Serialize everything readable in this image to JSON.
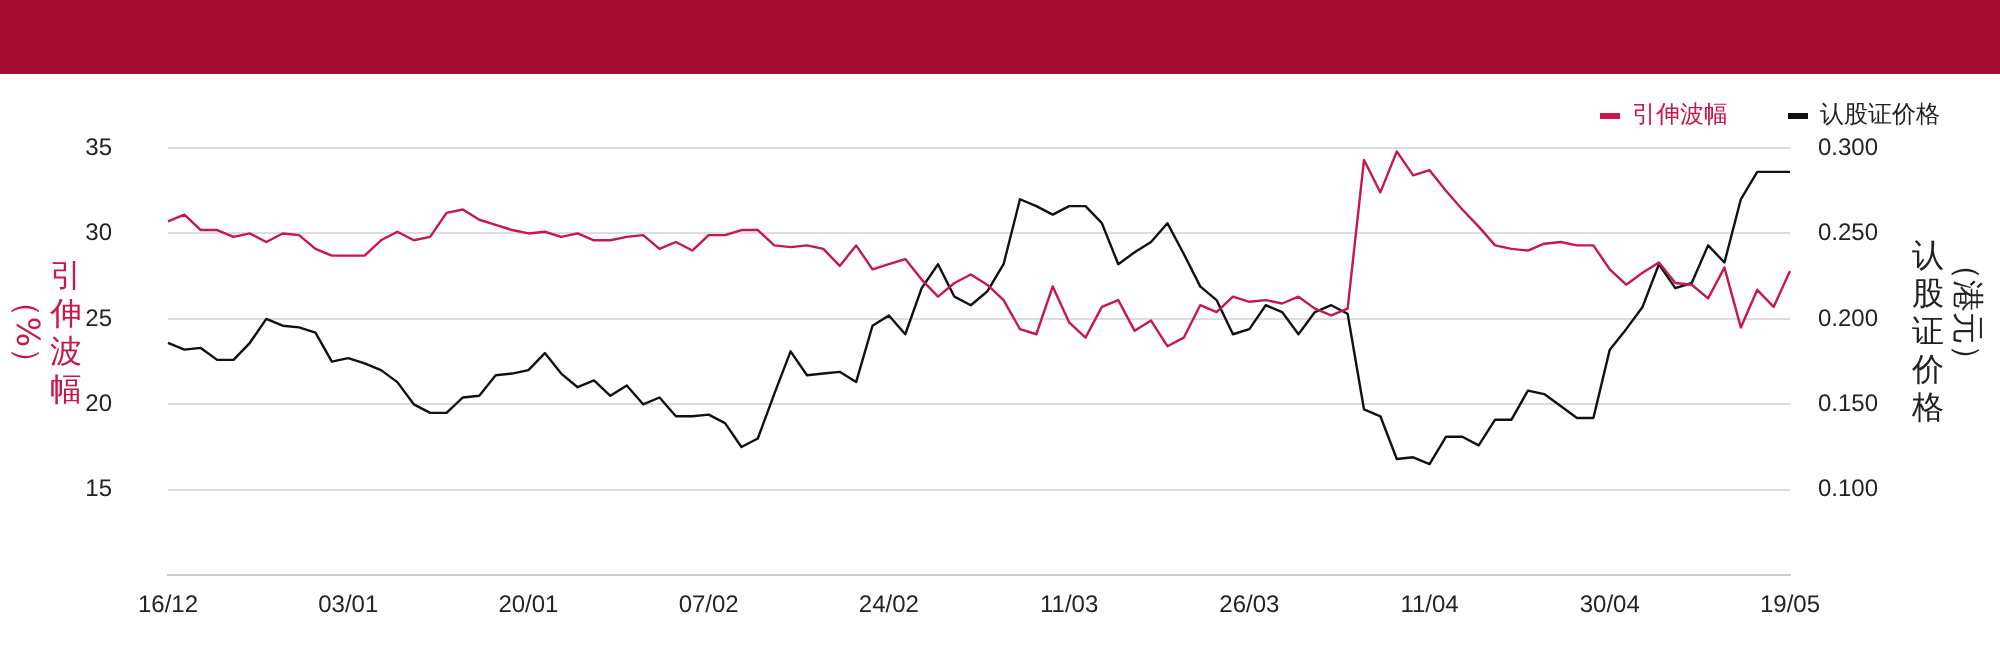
{
  "chart_data": {
    "type": "line",
    "categories": [
      "16/12",
      null,
      null,
      null,
      null,
      null,
      null,
      null,
      null,
      null,
      null,
      "03/01",
      null,
      null,
      null,
      null,
      null,
      null,
      null,
      null,
      null,
      null,
      "20/01",
      null,
      null,
      null,
      null,
      null,
      null,
      null,
      null,
      null,
      null,
      "07/02",
      null,
      null,
      null,
      null,
      null,
      null,
      null,
      null,
      null,
      null,
      "24/02",
      null,
      null,
      null,
      null,
      null,
      null,
      null,
      null,
      null,
      null,
      "11/03",
      null,
      null,
      null,
      null,
      null,
      null,
      null,
      null,
      null,
      null,
      "26/03",
      null,
      null,
      null,
      null,
      null,
      null,
      null,
      null,
      null,
      null,
      "11/04",
      null,
      null,
      null,
      null,
      null,
      null,
      null,
      null,
      null,
      null,
      "30/04",
      null,
      null,
      null,
      null,
      null,
      null,
      null,
      null,
      null,
      null,
      "19/05"
    ],
    "series": [
      {
        "name": "引伸波幅",
        "color": "#c8174a",
        "values": [
          30.7,
          31.1,
          30.2,
          30.2,
          29.8,
          30.0,
          29.5,
          30.0,
          29.9,
          29.1,
          28.7,
          28.7,
          28.7,
          29.6,
          30.1,
          29.6,
          29.8,
          31.2,
          31.4,
          30.8,
          30.5,
          30.2,
          30.0,
          30.1,
          29.8,
          30.0,
          29.6,
          29.6,
          29.8,
          29.9,
          29.1,
          29.5,
          29.0,
          29.9,
          29.9,
          30.2,
          30.2,
          29.3,
          29.2,
          29.3,
          29.1,
          28.1,
          29.3,
          27.9,
          28.2,
          28.5,
          27.3,
          26.3,
          27.1,
          27.6,
          27.0,
          26.1,
          24.4,
          24.1,
          26.9,
          24.8,
          23.9,
          25.7,
          26.1,
          24.3,
          24.9,
          23.4,
          23.9,
          25.8,
          25.4,
          26.3,
          26.0,
          26.1,
          25.9,
          26.3,
          25.6,
          25.2,
          25.6,
          34.3,
          32.4,
          34.8,
          33.4,
          33.7,
          32.5,
          31.4,
          30.4,
          29.3,
          29.1,
          29.0,
          29.4,
          29.5,
          29.3,
          29.3,
          27.9,
          27.0,
          27.7,
          28.3,
          27.1,
          27.0,
          26.2,
          28.0,
          24.5,
          26.7,
          25.7,
          27.8
        ]
      },
      {
        "name": "认股证价格",
        "color": "#111111",
        "axis": "y2",
        "values": [
          0.186,
          0.182,
          0.183,
          0.176,
          0.176,
          0.186,
          0.2,
          0.196,
          0.195,
          0.192,
          0.175,
          0.177,
          0.174,
          0.17,
          0.163,
          0.15,
          0.145,
          0.145,
          0.154,
          0.155,
          0.167,
          0.168,
          0.17,
          0.18,
          0.168,
          0.16,
          0.164,
          0.155,
          0.161,
          0.15,
          0.154,
          0.143,
          0.143,
          0.144,
          0.139,
          0.125,
          0.13,
          0.156,
          0.181,
          0.167,
          0.168,
          0.169,
          0.163,
          0.196,
          0.202,
          0.191,
          0.218,
          0.232,
          0.213,
          0.208,
          0.216,
          0.232,
          0.27,
          0.266,
          0.261,
          0.266,
          0.266,
          0.256,
          0.232,
          0.239,
          0.245,
          0.256,
          0.238,
          0.219,
          0.211,
          0.191,
          0.194,
          0.208,
          0.204,
          0.191,
          0.204,
          0.208,
          0.203,
          0.147,
          0.143,
          0.118,
          0.119,
          0.115,
          0.131,
          0.131,
          0.126,
          0.141,
          0.141,
          0.158,
          0.156,
          0.149,
          0.142,
          0.142,
          0.182,
          0.194,
          0.207,
          0.232,
          0.218,
          0.221,
          0.243,
          0.233,
          0.27,
          0.286,
          0.286,
          0.286
        ]
      }
    ],
    "ylabel": "引伸波幅（%）",
    "y2label": "认股证价格（港元）",
    "ylim": [
      10,
      35
    ],
    "yticks": [
      15,
      20,
      25,
      30,
      35
    ],
    "y2lim": [
      0.05,
      0.3
    ],
    "y2ticks": [
      {
        "value": 0.1,
        "label": "0.100"
      },
      {
        "value": 0.15,
        "label": "0.150"
      },
      {
        "value": 0.2,
        "label": "0.200"
      },
      {
        "value": 0.25,
        "label": "0.250"
      },
      {
        "value": 0.3,
        "label": "0.300"
      }
    ],
    "legend": "top right",
    "grid": "y"
  }
}
